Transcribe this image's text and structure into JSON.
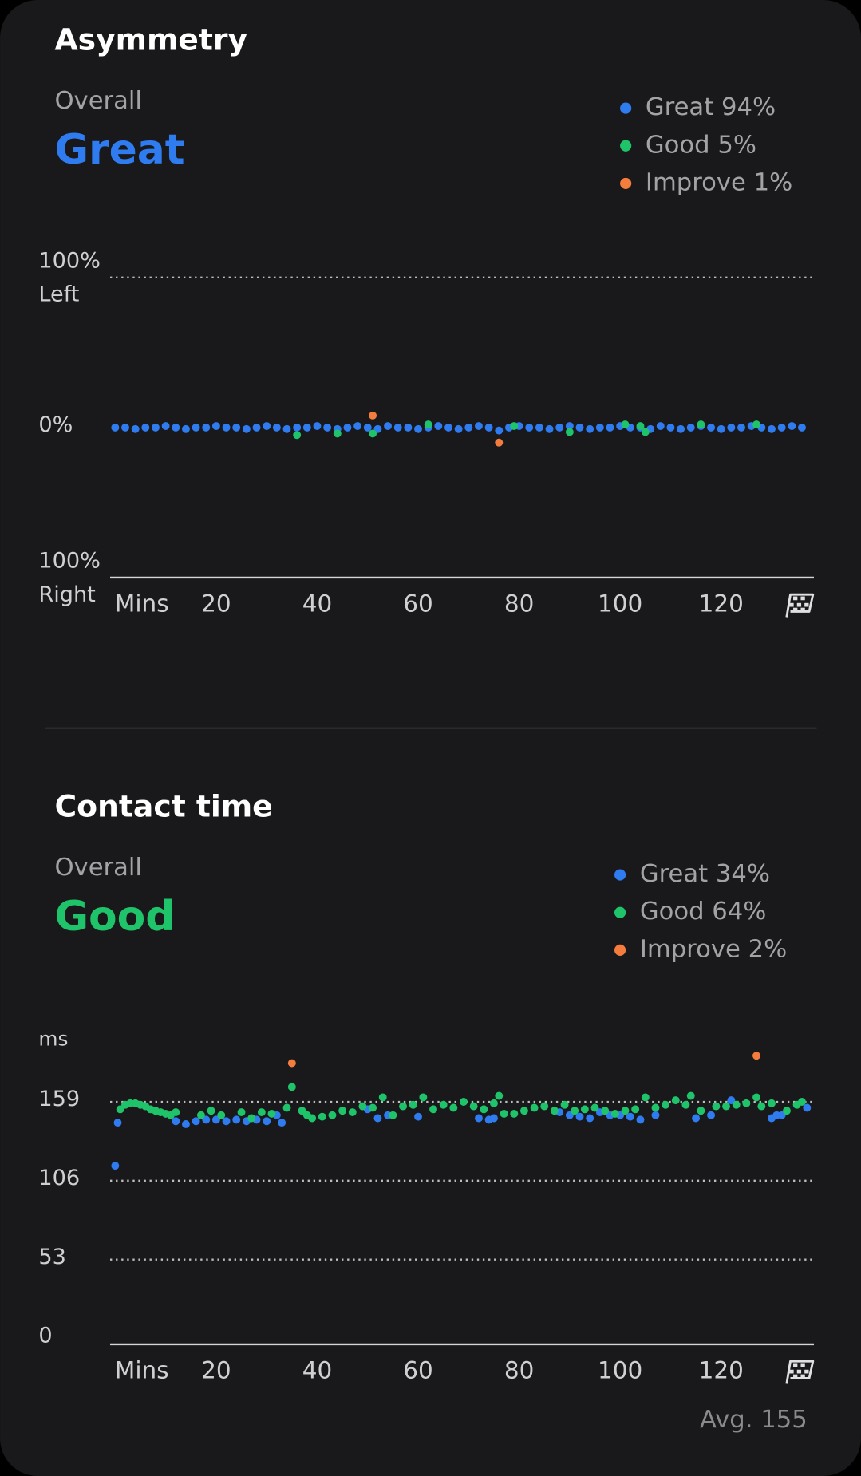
{
  "chart_data": [
    {
      "type": "scatter",
      "title": "Asymmetry",
      "overall_label": "Overall",
      "overall_value": "Great",
      "overall_color": "#2f7bf0",
      "xlabel": "Mins",
      "xlim": [
        -1,
        138
      ],
      "xticks": [
        20,
        40,
        60,
        80,
        100,
        120
      ],
      "ylim": [
        -100,
        100
      ],
      "yticks": [
        {
          "value": 100,
          "label": "100%",
          "sublabel": "Left"
        },
        {
          "value": 0,
          "label": "0%"
        },
        {
          "value": -100,
          "label": "100%",
          "sublabel": "Right"
        }
      ],
      "series": [
        {
          "name": "Great 94%",
          "color": "#2f7bf0",
          "x": [
            0,
            2,
            4,
            6,
            8,
            10,
            12,
            14,
            16,
            18,
            20,
            22,
            24,
            26,
            28,
            30,
            32,
            34,
            36,
            38,
            40,
            42,
            44,
            46,
            48,
            50,
            52,
            54,
            56,
            58,
            60,
            62,
            64,
            66,
            68,
            70,
            72,
            74,
            76,
            78,
            80,
            82,
            84,
            86,
            88,
            90,
            92,
            94,
            96,
            98,
            100,
            102,
            104,
            106,
            108,
            110,
            112,
            114,
            116,
            118,
            120,
            122,
            124,
            126,
            128,
            130,
            132,
            134,
            136
          ],
          "values": [
            0,
            0,
            -1,
            0,
            0,
            1,
            0,
            -1,
            0,
            0,
            1,
            0,
            0,
            -1,
            0,
            1,
            0,
            -1,
            0,
            0,
            1,
            0,
            -1,
            0,
            1,
            0,
            -1,
            1,
            0,
            0,
            -1,
            0,
            1,
            0,
            -1,
            0,
            1,
            0,
            -2,
            0,
            1,
            0,
            0,
            -1,
            0,
            1,
            0,
            -1,
            0,
            0,
            1,
            0,
            0,
            -1,
            1,
            0,
            -1,
            0,
            1,
            0,
            -1,
            0,
            0,
            1,
            0,
            -1,
            0,
            1,
            0
          ]
        },
        {
          "name": "Good 5%",
          "color": "#1fc46a",
          "x": [
            36,
            44,
            51,
            62,
            79,
            90,
            101,
            104,
            105,
            116,
            127
          ],
          "values": [
            -5,
            -4,
            -4,
            2,
            1,
            -3,
            2,
            1,
            -3,
            2,
            2
          ]
        },
        {
          "name": "Improve 1%",
          "color": "#f47c3c",
          "x": [
            51,
            76
          ],
          "values": [
            8,
            -10
          ]
        }
      ]
    },
    {
      "type": "scatter",
      "title": "Contact time",
      "overall_label": "Overall",
      "overall_value": "Good",
      "overall_color": "#1fc46a",
      "xlabel": "Mins",
      "xlim": [
        -1,
        138
      ],
      "xticks": [
        20,
        40,
        60,
        80,
        100,
        120
      ],
      "ylabel": "ms",
      "ylim": [
        -4,
        200
      ],
      "yticks": [
        0,
        53,
        106,
        159
      ],
      "annotation": "Avg. 155",
      "series": [
        {
          "name": "Great 34%",
          "color": "#2f7bf0",
          "x": [
            0,
            0.5,
            12,
            14,
            16,
            18,
            20,
            22,
            24,
            26,
            28,
            30,
            32,
            33,
            50,
            52,
            54,
            60,
            72,
            74,
            75,
            88,
            90,
            92,
            94,
            96,
            98,
            100,
            102,
            104,
            107,
            115,
            118,
            122,
            130,
            131,
            132,
            137
          ],
          "values": [
            116,
            145,
            146,
            144,
            146,
            147,
            147,
            146,
            147,
            146,
            147,
            146,
            150,
            145,
            154,
            148,
            150,
            149,
            148,
            147,
            148,
            152,
            150,
            149,
            148,
            152,
            150,
            150,
            149,
            147,
            150,
            148,
            150,
            160,
            148,
            150,
            150,
            155
          ]
        },
        {
          "name": "Good 64%",
          "color": "#1fc46a",
          "x": [
            1,
            2,
            3,
            4,
            5,
            6,
            7,
            8,
            9,
            10,
            11,
            12,
            17,
            19,
            21,
            25,
            27,
            29,
            31,
            34,
            35,
            37,
            38,
            39,
            41,
            43,
            45,
            47,
            49,
            51,
            53,
            55,
            57,
            59,
            61,
            63,
            65,
            67,
            69,
            71,
            73,
            75,
            76,
            77,
            79,
            81,
            83,
            85,
            87,
            89,
            91,
            93,
            95,
            97,
            99,
            101,
            103,
            105,
            107,
            109,
            111,
            113,
            114,
            116,
            119,
            121,
            123,
            125,
            127,
            128,
            130,
            133,
            135,
            136
          ],
          "values": [
            154,
            157,
            158,
            158,
            157,
            156,
            154,
            153,
            152,
            151,
            150,
            152,
            150,
            153,
            150,
            152,
            148,
            152,
            151,
            155,
            169,
            153,
            150,
            148,
            149,
            150,
            153,
            152,
            156,
            155,
            162,
            150,
            156,
            157,
            162,
            154,
            157,
            155,
            159,
            156,
            154,
            158,
            163,
            151,
            151,
            153,
            155,
            156,
            153,
            157,
            153,
            154,
            155,
            153,
            151,
            153,
            154,
            162,
            155,
            157,
            160,
            157,
            163,
            153,
            156,
            156,
            157,
            158,
            162,
            156,
            158,
            153,
            157,
            159
          ]
        },
        {
          "name": "Improve 2%",
          "color": "#f47c3c",
          "x": [
            35,
            127
          ],
          "values": [
            185,
            190
          ]
        }
      ]
    }
  ]
}
